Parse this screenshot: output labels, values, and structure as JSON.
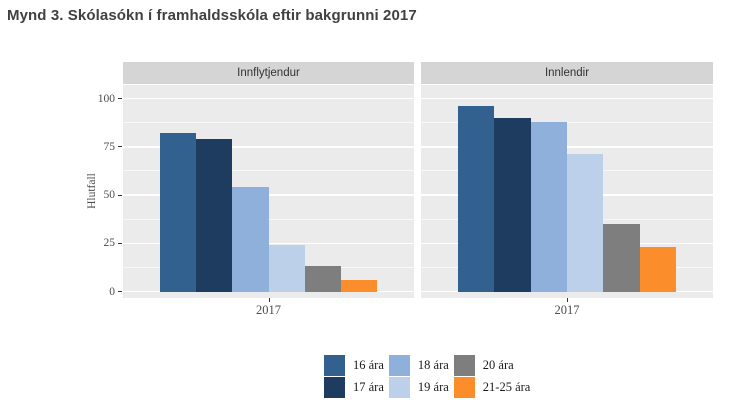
{
  "title": "Mynd 3. Skólasókn í framhaldsskóla eftir bakgrunni 2017",
  "chart_data": {
    "type": "bar",
    "title": "Mynd 3. Skólasókn í framhaldsskóla eftir bakgrunni 2017",
    "xlabel": "",
    "ylabel": "Hlutfall",
    "x_tick": "2017",
    "ylim": [
      0,
      100
    ],
    "y_ticks": [
      0,
      25,
      50,
      75,
      100
    ],
    "y_minor_ticks": [
      12.5,
      37.5,
      62.5,
      87.5
    ],
    "grid": "white major and minor horizontal gridlines on gray panel",
    "legend_position": "bottom",
    "facets": [
      {
        "label": "Innflytjendur",
        "values": [
          82,
          79,
          54,
          24,
          13,
          6
        ]
      },
      {
        "label": "Innlendir",
        "values": [
          96,
          90,
          88,
          71,
          35,
          23
        ]
      }
    ],
    "series_labels": [
      "16 ára",
      "17 ára",
      "18 ára",
      "19 ára",
      "20 ára",
      "21-25 ára"
    ],
    "colors": [
      "#33618F",
      "#1E3C5F",
      "#8FB0DB",
      "#BDD0E9",
      "#7E7E7E",
      "#FB8E2B"
    ],
    "panel_background": "#ebebeb",
    "strip_background": "#d5d5d5"
  }
}
